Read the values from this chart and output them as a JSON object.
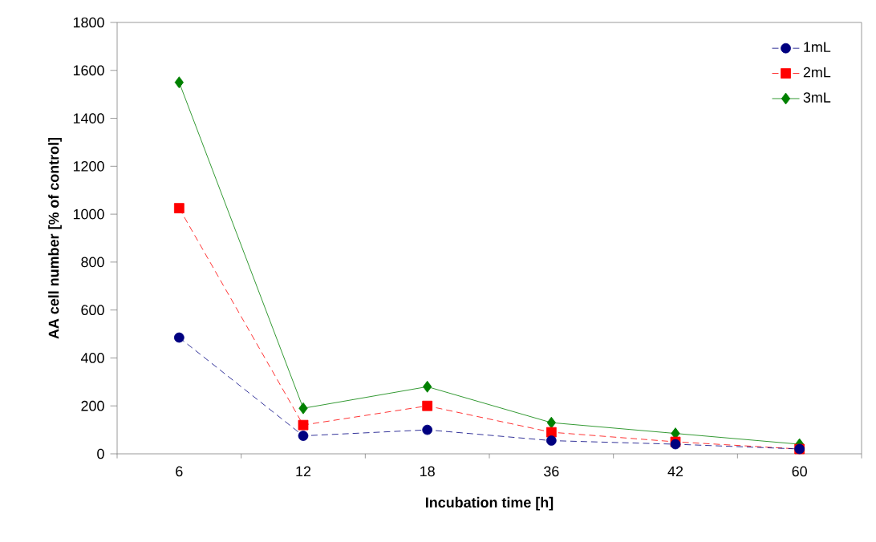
{
  "chart_data": {
    "type": "line",
    "xlabel": "Incubation time [h]",
    "ylabel": "AA cell number [% of control]",
    "categories": [
      "6",
      "12",
      "18",
      "36",
      "42",
      "60"
    ],
    "series": [
      {
        "name": "1mL",
        "color": "#000080",
        "values": [
          485,
          75,
          100,
          55,
          40,
          20
        ],
        "marker": "circle",
        "line_style": "dashed"
      },
      {
        "name": "2mL",
        "color": "#ff0000",
        "values": [
          1025,
          120,
          200,
          90,
          50,
          20
        ],
        "marker": "square",
        "line_style": "dashed"
      },
      {
        "name": "3mL",
        "color": "#008000",
        "values": [
          1550,
          190,
          280,
          130,
          85,
          40
        ],
        "marker": "diamond",
        "line_style": "solid"
      }
    ],
    "ylim": [
      0,
      1800
    ],
    "yticks": [
      0,
      200,
      400,
      600,
      800,
      1000,
      1200,
      1400,
      1600,
      1800
    ],
    "grid": false,
    "legend": "top right"
  }
}
